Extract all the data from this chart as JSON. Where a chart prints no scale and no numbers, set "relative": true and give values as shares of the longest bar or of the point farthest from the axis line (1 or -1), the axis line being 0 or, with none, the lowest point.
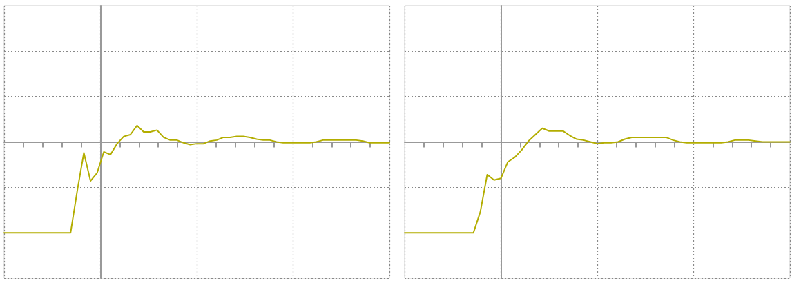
{
  "chart_data": [
    {
      "type": "line",
      "relative": true,
      "grid": true,
      "marker": "none",
      "line_style": "solid",
      "color": "#b3ad00",
      "categories": [
        null,
        null,
        null,
        null,
        null,
        null,
        null,
        null,
        null,
        null,
        null,
        null,
        null,
        null,
        null,
        null,
        null,
        null,
        null,
        null,
        null,
        null,
        null,
        null,
        null,
        null,
        null,
        null,
        null,
        null,
        null,
        null,
        null,
        null,
        null,
        null,
        null,
        null,
        null,
        null,
        null,
        null,
        null,
        null,
        null,
        null,
        null,
        null,
        null,
        null,
        null,
        null,
        null,
        null,
        null,
        null,
        null,
        null,
        null
      ],
      "values": [
        -1,
        -1,
        -1,
        -1,
        -1,
        -1,
        -1,
        -1,
        -1,
        -1,
        -1,
        -0.54,
        -0.12,
        -0.43,
        -0.34,
        -0.11,
        -0.14,
        -0.02,
        0.06,
        0.08,
        0.18,
        0.11,
        0.11,
        0.13,
        0.05,
        0.02,
        0.02,
        -0.01,
        -0.03,
        -0.02,
        -0.02,
        0.01,
        0.02,
        0.05,
        0.05,
        0.06,
        0.06,
        0.05,
        0.03,
        0.02,
        0.02,
        0,
        -0.01,
        -0.01,
        -0.01,
        -0.01,
        -0.01,
        0,
        0.02,
        0.02,
        0.02,
        0.02,
        0.02,
        0.02,
        0.01,
        -0.01,
        -0.01,
        -0.01,
        -0.01
      ]
    },
    {
      "type": "line",
      "relative": true,
      "grid": true,
      "marker": "none",
      "line_style": "solid",
      "color": "#b3ad00",
      "categories": [
        null,
        null,
        null,
        null,
        null,
        null,
        null,
        null,
        null,
        null,
        null,
        null,
        null,
        null,
        null,
        null,
        null,
        null,
        null,
        null,
        null,
        null,
        null,
        null,
        null,
        null,
        null,
        null,
        null,
        null,
        null,
        null,
        null,
        null,
        null,
        null,
        null,
        null,
        null,
        null,
        null,
        null,
        null,
        null,
        null,
        null,
        null,
        null,
        null,
        null,
        null,
        null,
        null,
        null,
        null,
        null,
        null
      ],
      "values": [
        -1,
        -1,
        -1,
        -1,
        -1,
        -1,
        -1,
        -1,
        -1,
        -1,
        -1,
        -0.77,
        -0.36,
        -0.42,
        -0.4,
        -0.22,
        -0.17,
        -0.09,
        0.01,
        0.08,
        0.15,
        0.12,
        0.12,
        0.12,
        0.07,
        0.03,
        0.02,
        0,
        -0.02,
        -0.01,
        -0.01,
        0,
        0.03,
        0.05,
        0.05,
        0.05,
        0.05,
        0.05,
        0.05,
        0.02,
        0,
        -0.01,
        -0.01,
        -0.01,
        -0.01,
        -0.01,
        -0.01,
        0,
        0.02,
        0.02,
        0.02,
        0.01,
        0,
        0,
        0,
        0,
        0
      ]
    }
  ]
}
